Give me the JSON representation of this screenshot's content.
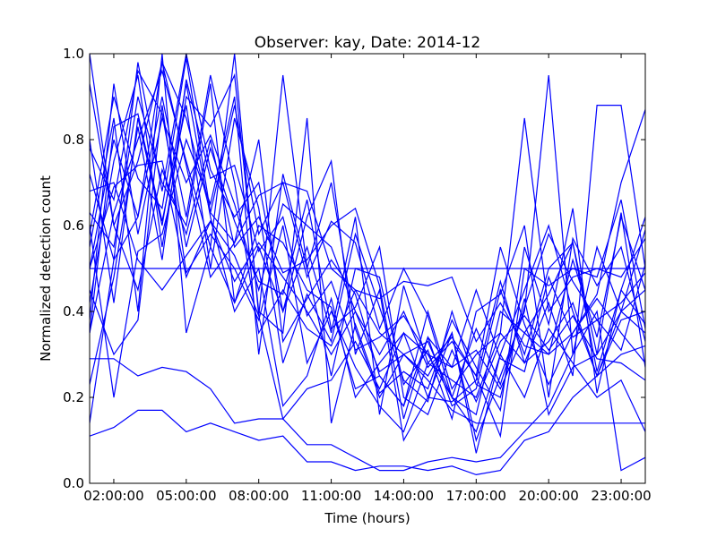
{
  "chart_data": {
    "type": "line",
    "title": "Observer: kay, Date: 2014-12",
    "xlabel": "Time (hours)",
    "ylabel": "Normalized detection count",
    "xlim": [
      1,
      24
    ],
    "ylim": [
      0,
      1
    ],
    "x_ticks": [
      2,
      5,
      8,
      11,
      14,
      17,
      20,
      23
    ],
    "x_tick_labels": [
      "02:00:00",
      "05:00:00",
      "08:00:00",
      "11:00:00",
      "14:00:00",
      "17:00:00",
      "20:00:00",
      "23:00:00"
    ],
    "y_ticks": [
      0,
      0.2,
      0.4,
      0.6,
      0.8,
      1.0
    ],
    "y_tick_labels": [
      "0.0",
      "0.2",
      "0.4",
      "0.6",
      "0.8",
      "1.0"
    ],
    "grid": false,
    "legend": false,
    "line_color": "#0000ff",
    "x": [
      1,
      2,
      3,
      4,
      5,
      6,
      7,
      8,
      9,
      10,
      11,
      12,
      13,
      14,
      15,
      16,
      17,
      18,
      19,
      20,
      21,
      22,
      23,
      24
    ],
    "series": [
      {
        "values": [
          0.11,
          0.13,
          0.17,
          0.17,
          0.12,
          0.14,
          0.12,
          0.1,
          0.11,
          0.05,
          0.05,
          0.03,
          0.04,
          0.04,
          0.03,
          0.04,
          0.02,
          0.03,
          0.1,
          0.12,
          0.2,
          0.25,
          0.3,
          0.32
        ]
      },
      {
        "values": [
          0.29,
          0.29,
          0.25,
          0.27,
          0.26,
          0.22,
          0.14,
          0.15,
          0.15,
          0.09,
          0.09,
          0.06,
          0.03,
          0.03,
          0.05,
          0.06,
          0.05,
          0.06,
          0.12,
          0.18,
          0.3,
          0.4,
          0.03,
          0.06
        ]
      },
      {
        "values": [
          0.5,
          0.5,
          0.5,
          0.5,
          0.5,
          0.5,
          0.5,
          0.5,
          0.5,
          0.5,
          0.5,
          0.5,
          0.5,
          0.5,
          0.5,
          0.5,
          0.5,
          0.5,
          0.5,
          0.5,
          0.5,
          0.5,
          0.5,
          0.5
        ]
      },
      {
        "values": [
          0.14,
          0.52,
          0.62,
          0.98,
          0.85,
          0.63,
          0.56,
          0.67,
          0.7,
          0.68,
          0.5,
          0.45,
          0.35,
          0.3,
          0.24,
          0.17,
          0.14,
          0.14,
          0.14,
          0.14,
          0.14,
          0.14,
          0.14,
          0.14
        ]
      },
      {
        "values": [
          0.55,
          0.85,
          0.4,
          1.0,
          0.35,
          0.55,
          1.0,
          0.39,
          0.95,
          0.5,
          0.7,
          0.36,
          0.2,
          0.3,
          0.25,
          0.35,
          0.07,
          0.3,
          0.45,
          0.6,
          0.4,
          0.25,
          0.4,
          0.45
        ]
      },
      {
        "values": [
          0.35,
          0.63,
          0.8,
          0.96,
          0.75,
          0.55,
          0.42,
          0.55,
          0.4,
          0.62,
          0.75,
          0.3,
          0.45,
          0.1,
          0.2,
          0.35,
          0.1,
          0.25,
          0.4,
          0.95,
          0.3,
          0.55,
          0.4,
          0.35
        ]
      },
      {
        "values": [
          0.8,
          0.42,
          0.85,
          0.6,
          0.93,
          0.62,
          0.4,
          0.5,
          0.18,
          0.25,
          0.43,
          0.2,
          0.28,
          0.35,
          0.3,
          0.2,
          0.12,
          0.3,
          0.2,
          0.36,
          0.28,
          0.2,
          0.24,
          0.12
        ]
      },
      {
        "values": [
          1.0,
          0.6,
          0.75,
          0.98,
          0.74,
          0.48,
          0.56,
          0.8,
          0.33,
          0.43,
          0.52,
          0.44,
          0.25,
          0.18,
          0.34,
          0.18,
          0.22,
          0.45,
          0.3,
          0.5,
          0.56,
          0.3,
          0.63,
          0.27
        ]
      },
      {
        "values": [
          0.42,
          0.75,
          0.95,
          0.55,
          0.9,
          0.83,
          0.95,
          0.4,
          0.35,
          0.85,
          0.14,
          0.37,
          0.21,
          0.26,
          0.22,
          0.38,
          0.27,
          0.17,
          0.55,
          0.37,
          0.64,
          0.21,
          0.45,
          0.62
        ]
      },
      {
        "values": [
          0.72,
          0.52,
          0.98,
          0.68,
          1.0,
          0.73,
          0.62,
          0.7,
          0.4,
          0.55,
          0.35,
          0.62,
          0.16,
          0.46,
          0.28,
          0.24,
          0.2,
          0.35,
          0.28,
          0.42,
          0.25,
          0.88,
          0.88,
          0.5
        ]
      },
      {
        "values": [
          0.6,
          0.2,
          0.54,
          0.58,
          0.8,
          0.65,
          0.9,
          0.3,
          0.72,
          0.5,
          0.25,
          0.5,
          0.48,
          0.23,
          0.31,
          0.15,
          0.4,
          0.44,
          0.6,
          0.2,
          0.57,
          0.46,
          0.55,
          0.33
        ]
      },
      {
        "values": [
          0.5,
          0.69,
          0.74,
          0.75,
          0.48,
          0.61,
          0.47,
          0.56,
          0.48,
          0.4,
          0.3,
          0.4,
          0.26,
          0.3,
          0.33,
          0.2,
          0.16,
          0.4,
          0.35,
          0.3,
          0.35,
          0.44,
          0.7,
          0.87
        ]
      },
      {
        "values": [
          0.63,
          0.55,
          0.9,
          0.7,
          0.6,
          0.93,
          0.42,
          0.6,
          0.56,
          0.45,
          0.41,
          0.22,
          0.25,
          0.18,
          0.4,
          0.22,
          0.3,
          0.35,
          0.85,
          0.4,
          0.48,
          0.5,
          0.48,
          0.57
        ]
      },
      {
        "values": [
          0.38,
          0.93,
          0.58,
          0.85,
          0.7,
          0.81,
          0.65,
          0.45,
          0.65,
          0.6,
          0.55,
          0.4,
          0.3,
          0.4,
          0.27,
          0.33,
          0.25,
          0.55,
          0.37,
          0.23,
          0.35,
          0.43,
          0.35,
          0.28
        ]
      },
      {
        "values": [
          0.5,
          0.8,
          0.62,
          0.9,
          0.62,
          0.95,
          0.7,
          0.35,
          0.45,
          0.36,
          0.32,
          0.45,
          0.43,
          0.47,
          0.46,
          0.48,
          0.33,
          0.42,
          0.32,
          0.3,
          0.52,
          0.34,
          0.62,
          0.45
        ]
      },
      {
        "values": [
          0.93,
          0.6,
          0.45,
          0.73,
          0.58,
          0.8,
          0.55,
          0.62,
          0.49,
          0.52,
          0.6,
          0.64,
          0.46,
          0.15,
          0.34,
          0.27,
          0.45,
          0.29,
          0.26,
          0.48,
          0.34,
          0.38,
          0.31,
          0.51
        ]
      },
      {
        "values": [
          0.45,
          0.3,
          0.38,
          0.88,
          0.49,
          0.58,
          0.5,
          0.38,
          0.6,
          0.28,
          0.4,
          0.27,
          0.18,
          0.12,
          0.28,
          0.34,
          0.25,
          0.11,
          0.5,
          0.46,
          0.5,
          0.48,
          0.66,
          0.36
        ]
      },
      {
        "values": [
          0.35,
          0.83,
          0.86,
          0.61,
          0.88,
          0.5,
          0.85,
          0.64,
          0.28,
          0.44,
          0.33,
          0.58,
          0.41,
          0.24,
          0.19,
          0.4,
          0.23,
          0.2,
          0.43,
          0.16,
          0.27,
          0.3,
          0.4,
          0.59
        ]
      },
      {
        "values": [
          0.68,
          0.7,
          0.52,
          0.45,
          0.53,
          0.61,
          0.53,
          0.39,
          0.15,
          0.22,
          0.24,
          0.33,
          0.22,
          0.35,
          0.2,
          0.19,
          0.24,
          0.47,
          0.28,
          0.33,
          0.42,
          0.25,
          0.38,
          0.4
        ]
      },
      {
        "values": [
          0.58,
          0.9,
          0.71,
          0.64,
          0.99,
          0.63,
          0.88,
          0.58,
          0.7,
          0.48,
          0.61,
          0.56,
          0.36,
          0.5,
          0.39,
          0.2,
          0.36,
          0.23,
          0.41,
          0.58,
          0.47,
          0.38,
          0.42,
          0.49
        ]
      },
      {
        "values": [
          0.23,
          0.48,
          0.83,
          0.52,
          0.94,
          0.71,
          0.74,
          0.54,
          0.62,
          0.39,
          0.47,
          0.31,
          0.34,
          0.39,
          0.3,
          0.27,
          0.31,
          0.22,
          0.35,
          0.44,
          0.56,
          0.26,
          0.45,
          0.37
        ]
      },
      {
        "values": [
          0.78,
          0.66,
          0.96,
          0.86,
          0.55,
          0.78,
          0.61,
          0.47,
          0.44,
          0.66,
          0.36,
          0.41,
          0.55,
          0.2,
          0.16,
          0.31,
          0.19,
          0.33,
          0.39,
          0.31,
          0.39,
          0.29,
          0.28,
          0.24
        ]
      }
    ]
  }
}
